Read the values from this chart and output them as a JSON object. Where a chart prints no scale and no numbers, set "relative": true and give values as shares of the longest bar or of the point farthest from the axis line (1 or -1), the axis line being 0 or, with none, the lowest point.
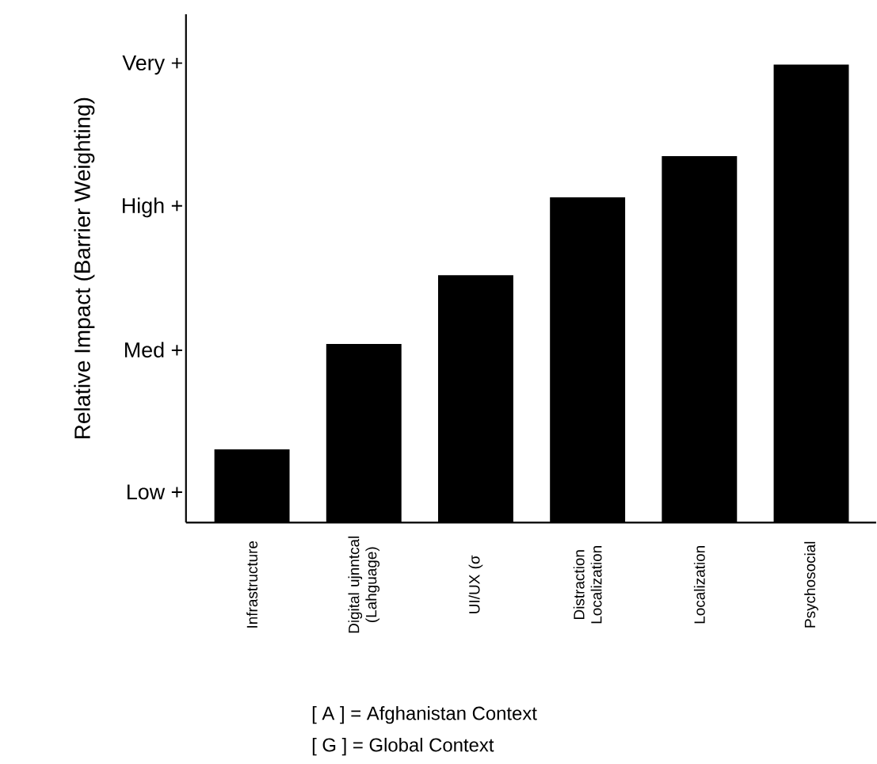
{
  "chart_data": {
    "type": "bar",
    "relative": true,
    "ylabel": "Relative Impact (Barrier Weighting)",
    "categories": [
      "Infrastructure",
      "Digital ujnntcal (Lahguage)",
      "UI/UX (σ",
      "Distraction Localization",
      "Localization",
      "Psychosocial"
    ],
    "values": [
      0.16,
      0.39,
      0.54,
      0.71,
      0.8,
      1
    ],
    "color": "#000000",
    "annotations": [
      "Very +",
      "High +",
      "Med +",
      "Low +",
      "[ A ] = Afghanistan Context",
      "[ G ] = Global Context"
    ]
  }
}
